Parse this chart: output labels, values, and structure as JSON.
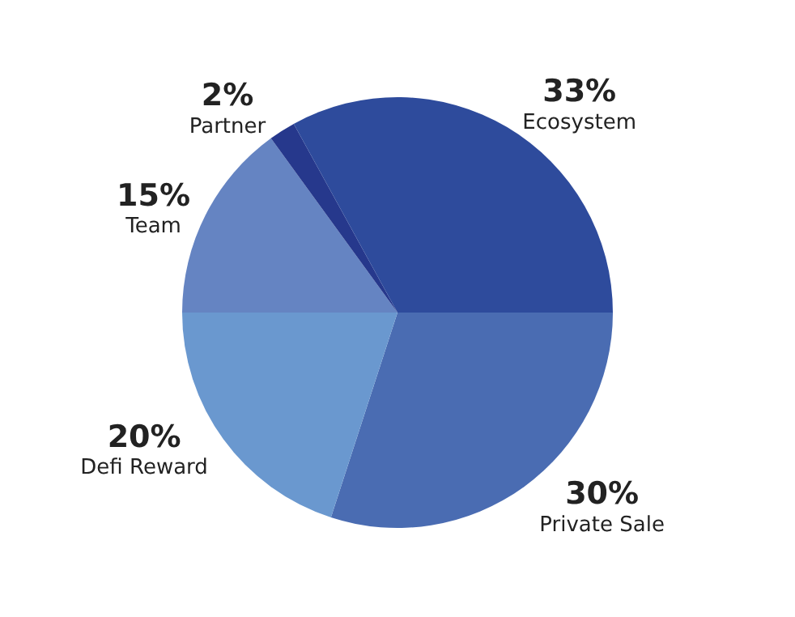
{
  "chart_data": {
    "type": "pie",
    "categories": [
      "Private Sale",
      "Defi Reward",
      "Team",
      "Partner",
      "Ecosystem"
    ],
    "values": [
      30,
      20,
      15,
      2,
      33
    ],
    "value_labels": [
      "30%",
      "20%",
      "15%",
      "2%",
      "33%"
    ],
    "colors": [
      "#4a6cb2",
      "#6a98cf",
      "#6584c2",
      "#26388c",
      "#2e4b9c"
    ]
  }
}
